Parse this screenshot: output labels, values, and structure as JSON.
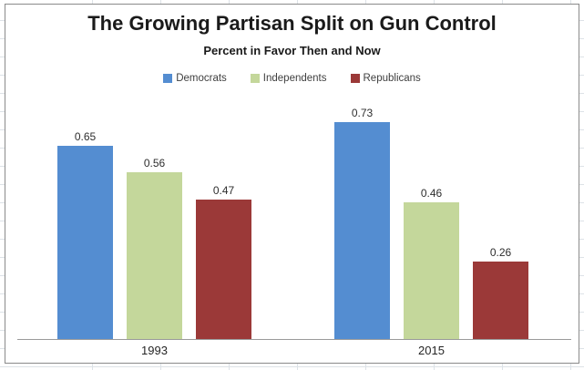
{
  "chart_data": {
    "type": "bar",
    "title": "The Growing Partisan Split on Gun Control",
    "subtitle": "Percent in Favor Then and Now",
    "categories": [
      "1993",
      "2015"
    ],
    "series": [
      {
        "name": "Democrats",
        "color": "#548DD1",
        "values": [
          0.65,
          0.73
        ]
      },
      {
        "name": "Independents",
        "color": "#C4D79B",
        "values": [
          0.56,
          0.46
        ]
      },
      {
        "name": "Republicans",
        "color": "#9B3938",
        "values": [
          0.47,
          0.26
        ]
      }
    ],
    "ylim": [
      0,
      0.8
    ],
    "data_labels": true,
    "data_label_format": "0.00",
    "legend_position": "top",
    "gridlines": false,
    "y_axis_visible": false
  },
  "colors": {
    "chart_border": "#8a8a8a",
    "axis_line": "#9a9a9a",
    "sheet_gridline": "#dde2e7",
    "text": "#1a1a1a"
  }
}
